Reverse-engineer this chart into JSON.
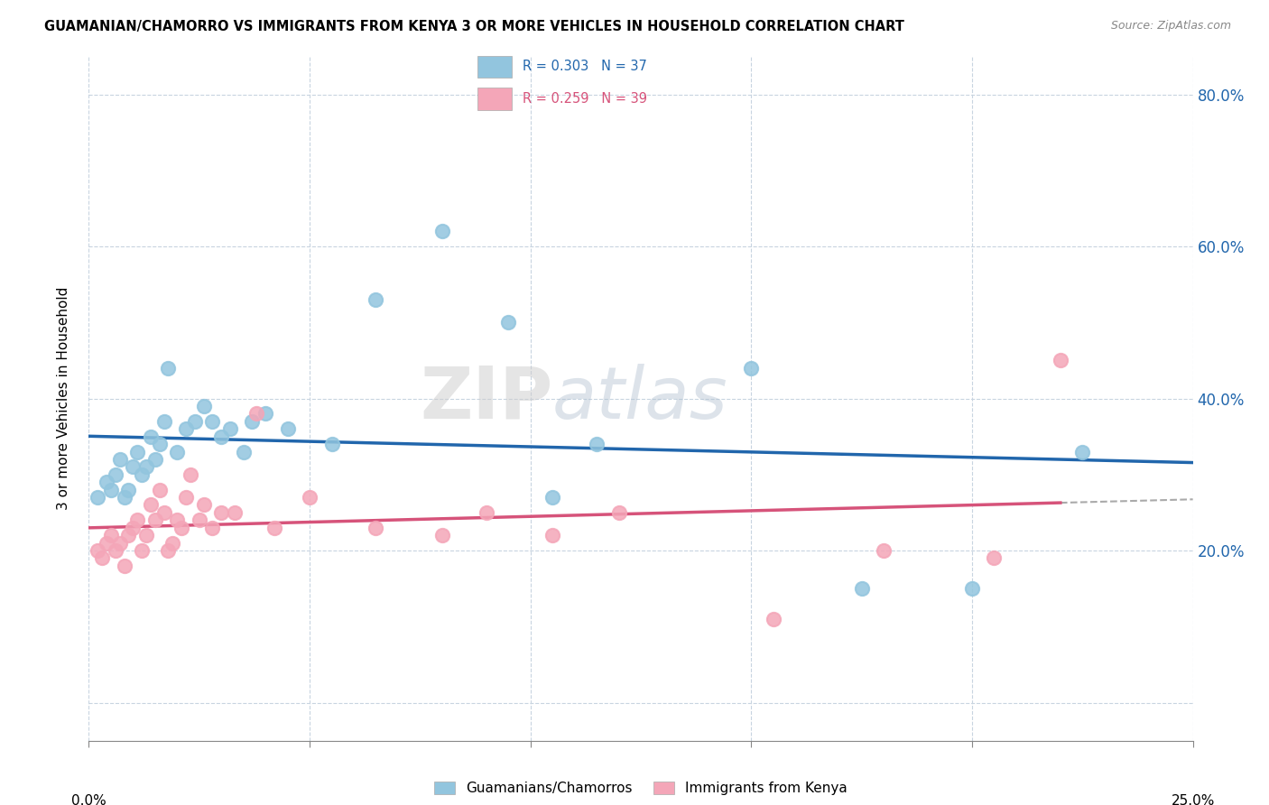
{
  "title": "GUAMANIAN/CHAMORRO VS IMMIGRANTS FROM KENYA 3 OR MORE VEHICLES IN HOUSEHOLD CORRELATION CHART",
  "source": "Source: ZipAtlas.com",
  "ylabel": "3 or more Vehicles in Household",
  "xlim": [
    0.0,
    25.0
  ],
  "ylim": [
    -5.0,
    85.0
  ],
  "yticks": [
    0,
    20,
    40,
    60,
    80
  ],
  "blue_R": 0.303,
  "blue_N": 37,
  "pink_R": 0.259,
  "pink_N": 39,
  "blue_color": "#92c5de",
  "pink_color": "#f4a6b8",
  "blue_line_color": "#2166ac",
  "pink_line_color": "#d6537a",
  "legend_blue_label": "Guamanians/Chamorros",
  "legend_pink_label": "Immigrants from Kenya",
  "watermark_zip": "ZIP",
  "watermark_atlas": "atlas",
  "blue_scatter_x": [
    0.2,
    0.4,
    0.5,
    0.6,
    0.7,
    0.8,
    0.9,
    1.0,
    1.1,
    1.2,
    1.3,
    1.4,
    1.5,
    1.6,
    1.7,
    1.8,
    2.0,
    2.2,
    2.4,
    2.6,
    2.8,
    3.0,
    3.2,
    3.5,
    3.7,
    4.0,
    4.5,
    5.5,
    6.5,
    8.0,
    9.5,
    11.5,
    15.0,
    17.5,
    20.0,
    22.5,
    10.5
  ],
  "blue_scatter_y": [
    27,
    29,
    28,
    30,
    32,
    27,
    28,
    31,
    33,
    30,
    31,
    35,
    32,
    34,
    37,
    44,
    33,
    36,
    37,
    39,
    37,
    35,
    36,
    33,
    37,
    38,
    36,
    34,
    53,
    62,
    50,
    34,
    44,
    15,
    15,
    33,
    27
  ],
  "pink_scatter_x": [
    0.2,
    0.3,
    0.4,
    0.5,
    0.6,
    0.7,
    0.8,
    0.9,
    1.0,
    1.1,
    1.2,
    1.3,
    1.4,
    1.5,
    1.6,
    1.7,
    1.8,
    1.9,
    2.0,
    2.1,
    2.2,
    2.3,
    2.5,
    2.6,
    2.8,
    3.0,
    3.3,
    3.8,
    4.2,
    5.0,
    6.5,
    8.0,
    9.0,
    10.5,
    12.0,
    15.5,
    18.0,
    22.0,
    20.5
  ],
  "pink_scatter_y": [
    20,
    19,
    21,
    22,
    20,
    21,
    18,
    22,
    23,
    24,
    20,
    22,
    26,
    24,
    28,
    25,
    20,
    21,
    24,
    23,
    27,
    30,
    24,
    26,
    23,
    25,
    25,
    38,
    23,
    27,
    23,
    22,
    25,
    22,
    25,
    11,
    20,
    45,
    19
  ]
}
